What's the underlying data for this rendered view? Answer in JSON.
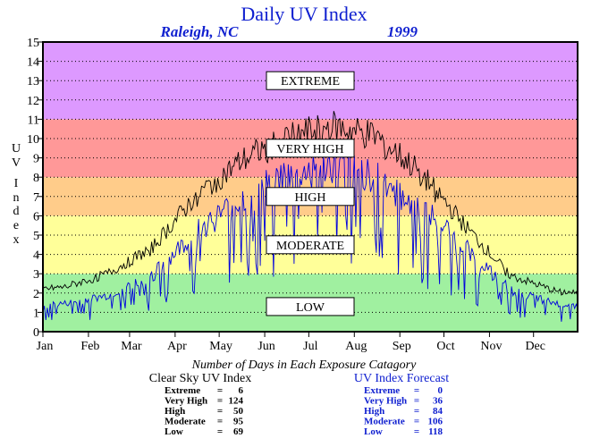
{
  "chart_data": {
    "type": "line",
    "title": "Daily UV Index",
    "location": "Raleigh, NC",
    "year": "1999",
    "ylabel": "UV Index",
    "ylim": [
      0,
      15
    ],
    "yticks": [
      0,
      1,
      2,
      3,
      4,
      5,
      6,
      7,
      8,
      9,
      10,
      11,
      12,
      13,
      14,
      15
    ],
    "x_categories": [
      "Jan",
      "Feb",
      "Mar",
      "Apr",
      "May",
      "Jun",
      "Jul",
      "Aug",
      "Sep",
      "Oct",
      "Nov",
      "Dec"
    ],
    "xlim_days": [
      1,
      365
    ],
    "grid": "horizontal-dotted",
    "bands": [
      {
        "label": "LOW",
        "from": 0,
        "to": 3,
        "color": "#a0f0a0"
      },
      {
        "label": "MODERATE",
        "from": 3,
        "to": 6,
        "color": "#ffff99"
      },
      {
        "label": "HIGH",
        "from": 6,
        "to": 8,
        "color": "#ffcc8a"
      },
      {
        "label": "VERY HIGH",
        "from": 8,
        "to": 11,
        "color": "#ff9898"
      },
      {
        "label": "EXTREME",
        "from": 11,
        "to": 15,
        "color": "#dd99ff"
      }
    ],
    "series": [
      {
        "name": "Clear Sky UV Index",
        "color": "#000000",
        "monthly_values": [
          2.3,
          3.0,
          4.3,
          7.0,
          8.8,
          10.0,
          10.6,
          10.1,
          8.2,
          5.4,
          2.9,
          2.1
        ]
      },
      {
        "name": "UV Index Forecast",
        "color": "#0000dd",
        "monthly_values": [
          1.4,
          1.8,
          2.8,
          5.0,
          6.6,
          7.8,
          8.3,
          7.9,
          6.3,
          4.2,
          2.1,
          1.4
        ]
      }
    ],
    "summary_heading": "Number of Days in Each Exposure Catagory",
    "summary": [
      {
        "title": "Clear Sky UV Index",
        "rows": [
          {
            "category": "Extreme",
            "count": "6"
          },
          {
            "category": "Very High",
            "count": "124"
          },
          {
            "category": "High",
            "count": "50"
          },
          {
            "category": "Moderate",
            "count": "95"
          },
          {
            "category": "Low",
            "count": "69"
          }
        ]
      },
      {
        "title": "UV Index Forecast",
        "rows": [
          {
            "category": "Extreme",
            "count": "0"
          },
          {
            "category": "Very High",
            "count": "36"
          },
          {
            "category": "High",
            "count": "84"
          },
          {
            "category": "Moderate",
            "count": "106"
          },
          {
            "category": "Low",
            "count": "118"
          }
        ]
      }
    ]
  }
}
